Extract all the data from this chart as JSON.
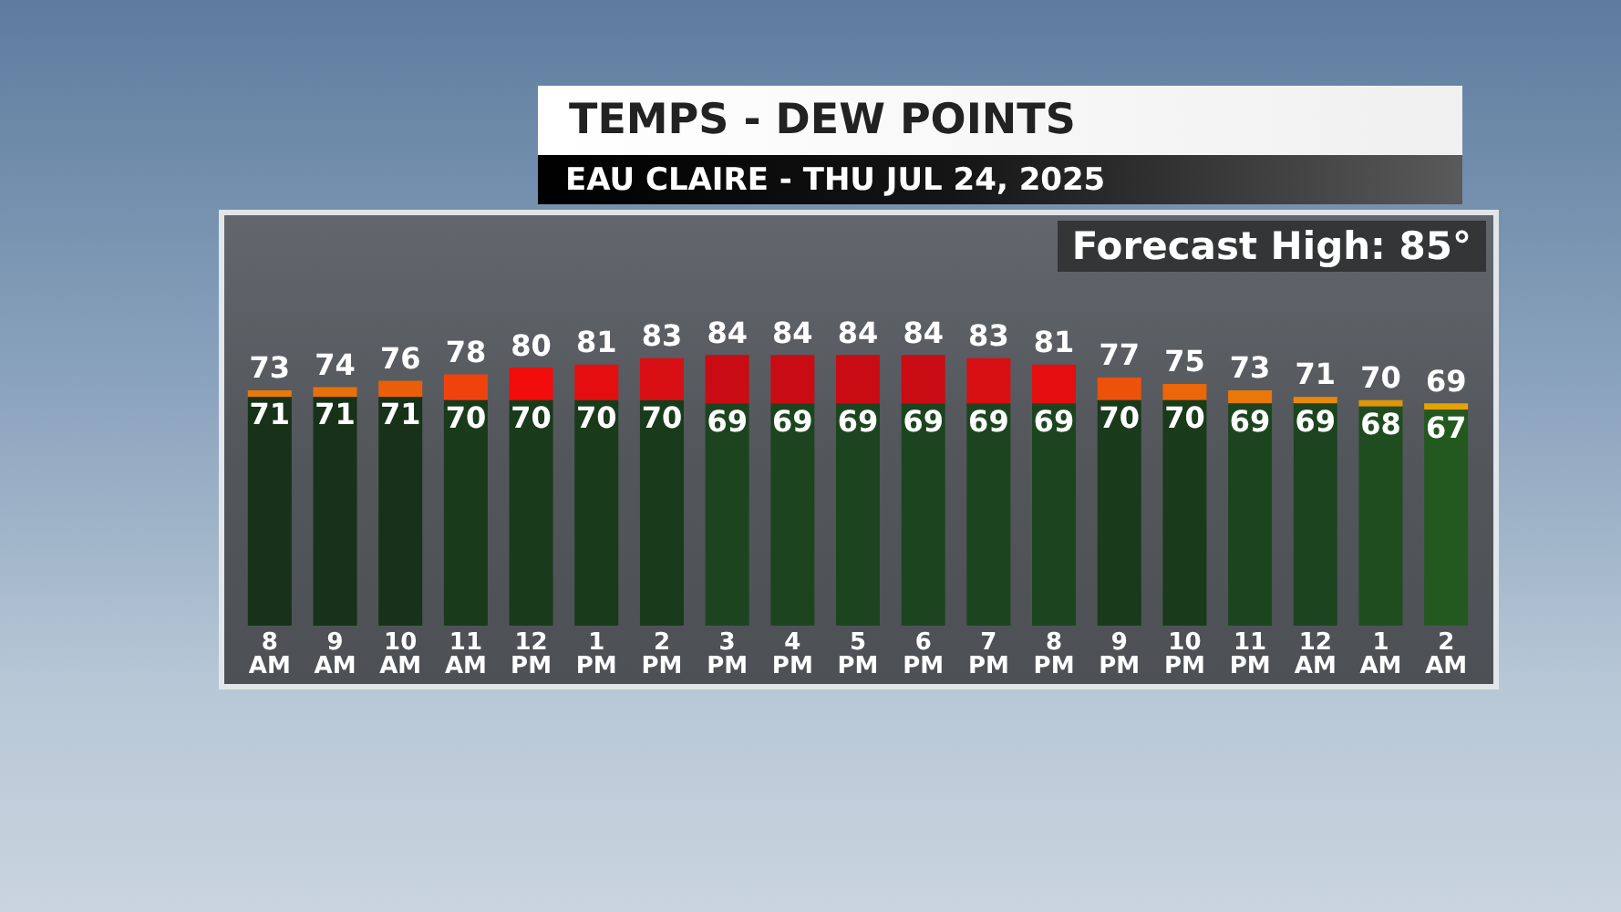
{
  "chart_data": {
    "type": "bar",
    "title": "TEMPS - DEW POINTS",
    "subtitle": "EAU CLAIRE - THU JUL 24, 2025",
    "annotations": [
      "Forecast High: 85°"
    ],
    "categories": [
      "8 AM",
      "9 AM",
      "10 AM",
      "11 AM",
      "12 PM",
      "1 PM",
      "2 PM",
      "3 PM",
      "4 PM",
      "5 PM",
      "6 PM",
      "7 PM",
      "8 PM",
      "9 PM",
      "10 PM",
      "11 PM",
      "12 AM",
      "1 AM",
      "2 AM"
    ],
    "stacked": true,
    "series": [
      {
        "values": [
          71,
          71,
          71,
          70,
          70,
          70,
          70,
          69,
          69,
          69,
          69,
          69,
          69,
          70,
          70,
          69,
          69,
          68,
          67
        ],
        "value_labels": [
          "71",
          "71",
          "71",
          "70",
          "70",
          "70",
          "70",
          "69",
          "69",
          "69",
          "69",
          "69",
          "69",
          "70",
          "70",
          "69",
          "69",
          "68",
          "67"
        ],
        "colors": [
          "#173218",
          "#173218",
          "#173218",
          "#193a1b",
          "#193a1b",
          "#193a1b",
          "#193a1b",
          "#1c451f",
          "#1c451f",
          "#1c451f",
          "#1c451f",
          "#1c451f",
          "#1c451f",
          "#193a1b",
          "#193a1b",
          "#1c451f",
          "#1c451f",
          "#1f4d20",
          "#23591f"
        ]
      },
      {
        "values": [
          2,
          3,
          5,
          8,
          10,
          11,
          13,
          15,
          15,
          15,
          15,
          14,
          12,
          7,
          5,
          4,
          2,
          2,
          2
        ],
        "colors": [
          "#e8780a",
          "#e8700a",
          "#ea5e0a",
          "#f0420c",
          "#f20c0c",
          "#e40e10",
          "#d81014",
          "#c90c14",
          "#c90c14",
          "#c90c14",
          "#c90c14",
          "#d81014",
          "#e40e10",
          "#ee520a",
          "#ec660a",
          "#e8780a",
          "#e88a08",
          "#e0960a",
          "#e8a204"
        ]
      }
    ],
    "totals": [
      "73",
      "74",
      "76",
      "78",
      "80",
      "81",
      "83",
      "84",
      "84",
      "84",
      "84",
      "83",
      "81",
      "77",
      "75",
      "73",
      "71",
      "70",
      "69"
    ],
    "tick_labels": "x"
  }
}
